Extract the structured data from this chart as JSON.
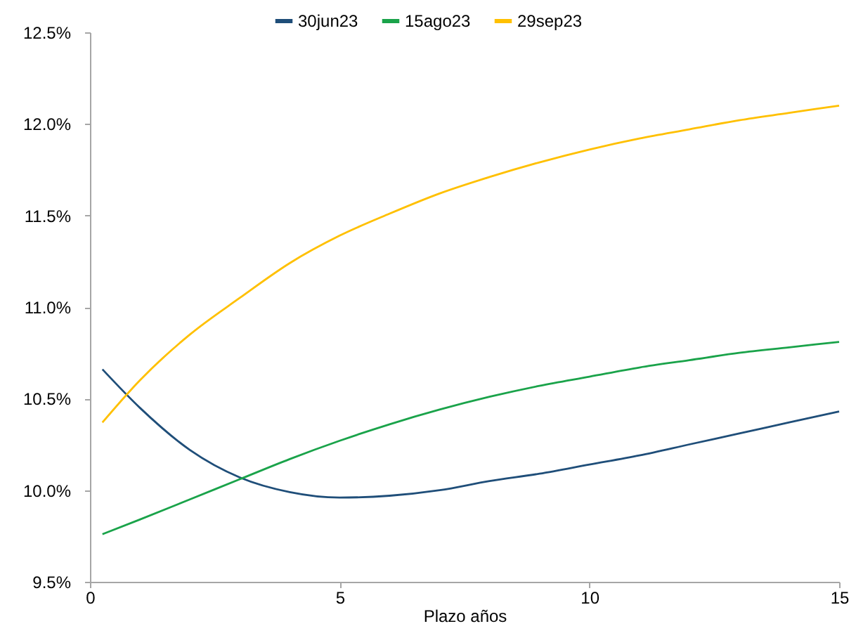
{
  "chart_data": {
    "type": "line",
    "xlabel": "Plazo años",
    "x": [
      0.25,
      1,
      2,
      3,
      4,
      5,
      6,
      7,
      8,
      9,
      10,
      11,
      12,
      13,
      14,
      15
    ],
    "series": [
      {
        "name": "30jun23",
        "color": "#1f4e79",
        "values": [
          10.66,
          10.45,
          10.22,
          10.07,
          9.99,
          9.96,
          9.97,
          10.0,
          10.05,
          10.09,
          10.14,
          10.19,
          10.25,
          10.31,
          10.37,
          10.43
        ]
      },
      {
        "name": "15ago23",
        "color": "#1aa34a",
        "values": [
          9.76,
          9.84,
          9.95,
          10.06,
          10.17,
          10.27,
          10.36,
          10.44,
          10.51,
          10.57,
          10.62,
          10.67,
          10.71,
          10.75,
          10.78,
          10.81
        ]
      },
      {
        "name": "29sep23",
        "color": "#ffc000",
        "values": [
          10.37,
          10.6,
          10.85,
          11.05,
          11.24,
          11.39,
          11.51,
          11.62,
          11.71,
          11.79,
          11.86,
          11.92,
          11.97,
          12.02,
          12.06,
          12.1
        ]
      }
    ],
    "xlim": [
      0,
      15
    ],
    "xticks": [
      0,
      5,
      10,
      15
    ],
    "ylim": [
      9.5,
      12.5
    ],
    "yticks": [
      {
        "value": 9.5,
        "label": "9.5%"
      },
      {
        "value": 10.0,
        "label": "10.0%"
      },
      {
        "value": 10.5,
        "label": "10.5%"
      },
      {
        "value": 11.0,
        "label": "11.0%"
      },
      {
        "value": 11.5,
        "label": "11.5%"
      },
      {
        "value": 12.0,
        "label": "12.0%"
      },
      {
        "value": 12.5,
        "label": "12.5%"
      }
    ],
    "grid": false,
    "legend": "top",
    "marker": "none",
    "line_style": "solid"
  }
}
